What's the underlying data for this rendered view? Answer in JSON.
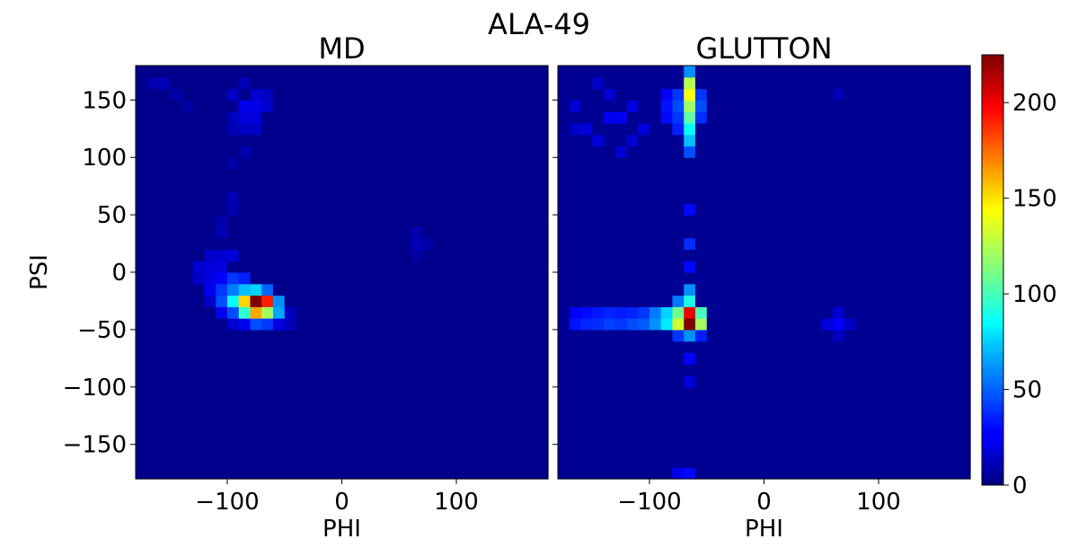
{
  "figure": {
    "title": "ALA-49"
  },
  "chart_data": [
    {
      "type": "heatmap",
      "title": "MD",
      "xlabel": "PHI",
      "ylabel": "PSI",
      "xlim": [
        -180,
        180
      ],
      "ylim": [
        -180,
        180
      ],
      "bins": 36,
      "xticks": [
        -100,
        0,
        100
      ],
      "yticks": [
        -150,
        -100,
        -50,
        0,
        50,
        100,
        150
      ],
      "tick_labels_x": [
        "−100",
        "0",
        "100"
      ],
      "tick_labels_y": [
        "−150",
        "−100",
        "−50",
        "0",
        "50",
        "100",
        "150"
      ],
      "background_count": 3,
      "peaks": [
        {
          "phi": -75,
          "psi": -25,
          "count": 225
        },
        {
          "phi": -65,
          "psi": -25,
          "count": 190
        },
        {
          "phi": -75,
          "psi": -35,
          "count": 160
        },
        {
          "phi": -85,
          "psi": -25,
          "count": 150
        },
        {
          "phi": -65,
          "psi": -35,
          "count": 120
        },
        {
          "phi": -85,
          "psi": -35,
          "count": 95
        },
        {
          "phi": -95,
          "psi": -25,
          "count": 85
        },
        {
          "phi": -75,
          "psi": -15,
          "count": 75
        },
        {
          "phi": -85,
          "psi": -15,
          "count": 70
        },
        {
          "phi": -95,
          "psi": -15,
          "count": 55
        },
        {
          "phi": -55,
          "psi": -25,
          "count": 60
        },
        {
          "phi": -55,
          "psi": -35,
          "count": 65
        },
        {
          "phi": -65,
          "psi": -15,
          "count": 50
        },
        {
          "phi": -105,
          "psi": -25,
          "count": 45
        },
        {
          "phi": -105,
          "psi": -15,
          "count": 40
        },
        {
          "phi": -95,
          "psi": -5,
          "count": 40
        },
        {
          "phi": -85,
          "psi": -5,
          "count": 35
        },
        {
          "phi": -75,
          "psi": -45,
          "count": 45
        },
        {
          "phi": -65,
          "psi": -45,
          "count": 40
        },
        {
          "phi": -95,
          "psi": -35,
          "count": 45
        },
        {
          "phi": -115,
          "psi": -15,
          "count": 25
        },
        {
          "phi": -105,
          "psi": -5,
          "count": 28
        },
        {
          "phi": -115,
          "psi": 5,
          "count": 20
        },
        {
          "phi": -105,
          "psi": 5,
          "count": 22
        },
        {
          "phi": -125,
          "psi": 5,
          "count": 18
        },
        {
          "phi": -125,
          "psi": -5,
          "count": 16
        },
        {
          "phi": -115,
          "psi": -5,
          "count": 22
        },
        {
          "phi": -95,
          "psi": 15,
          "count": 20
        },
        {
          "phi": -105,
          "psi": 15,
          "count": 18
        },
        {
          "phi": -115,
          "psi": 15,
          "count": 16
        },
        {
          "phi": -55,
          "psi": -45,
          "count": 22
        },
        {
          "phi": -85,
          "psi": -45,
          "count": 25
        },
        {
          "phi": -95,
          "psi": -45,
          "count": 18
        },
        {
          "phi": -105,
          "psi": -35,
          "count": 24
        },
        {
          "phi": -115,
          "psi": -25,
          "count": 16
        },
        {
          "phi": -45,
          "psi": -35,
          "count": 15
        },
        {
          "phi": -45,
          "psi": -45,
          "count": 12
        },
        {
          "phi": -75,
          "psi": 145,
          "count": 22
        },
        {
          "phi": -85,
          "psi": 145,
          "count": 24
        },
        {
          "phi": -75,
          "psi": 135,
          "count": 20
        },
        {
          "phi": -85,
          "psi": 135,
          "count": 22
        },
        {
          "phi": -65,
          "psi": 145,
          "count": 18
        },
        {
          "phi": -95,
          "psi": 155,
          "count": 16
        },
        {
          "phi": -75,
          "psi": 155,
          "count": 18
        },
        {
          "phi": -65,
          "psi": 155,
          "count": 14
        },
        {
          "phi": -85,
          "psi": 165,
          "count": 12
        },
        {
          "phi": -75,
          "psi": 125,
          "count": 16
        },
        {
          "phi": -85,
          "psi": 125,
          "count": 14
        },
        {
          "phi": -95,
          "psi": 135,
          "count": 14
        },
        {
          "phi": -95,
          "psi": 125,
          "count": 12
        },
        {
          "phi": -155,
          "psi": 165,
          "count": 12
        },
        {
          "phi": -165,
          "psi": 165,
          "count": 10
        },
        {
          "phi": -145,
          "psi": 155,
          "count": 9
        },
        {
          "phi": -135,
          "psi": 145,
          "count": 8
        },
        {
          "phi": -95,
          "psi": 65,
          "count": 12
        },
        {
          "phi": -95,
          "psi": 55,
          "count": 10
        },
        {
          "phi": -105,
          "psi": 45,
          "count": 10
        },
        {
          "phi": -105,
          "psi": 35,
          "count": 12
        },
        {
          "phi": -95,
          "psi": 95,
          "count": 9
        },
        {
          "phi": -85,
          "psi": 105,
          "count": 10
        },
        {
          "phi": 65,
          "psi": 25,
          "count": 12
        },
        {
          "phi": 65,
          "psi": 35,
          "count": 10
        },
        {
          "phi": 75,
          "psi": 25,
          "count": 9
        },
        {
          "phi": 65,
          "psi": 15,
          "count": 8
        }
      ]
    },
    {
      "type": "heatmap",
      "title": "GLUTTON",
      "xlabel": "PHI",
      "ylabel": "",
      "xlim": [
        -180,
        180
      ],
      "ylim": [
        -180,
        180
      ],
      "bins": 36,
      "xticks": [
        -100,
        0,
        100
      ],
      "yticks": [
        -150,
        -100,
        -50,
        0,
        50,
        100,
        150
      ],
      "tick_labels_x": [
        "−100",
        "0",
        "100"
      ],
      "tick_labels_y": [],
      "background_count": 4,
      "peaks": [
        {
          "phi": -65,
          "psi": -45,
          "count": 225
        },
        {
          "phi": -65,
          "psi": -35,
          "count": 200
        },
        {
          "phi": -75,
          "psi": -45,
          "count": 130
        },
        {
          "phi": -55,
          "psi": -45,
          "count": 120
        },
        {
          "phi": -75,
          "psi": -35,
          "count": 110
        },
        {
          "phi": -55,
          "psi": -35,
          "count": 100
        },
        {
          "phi": -85,
          "psi": -45,
          "count": 80
        },
        {
          "phi": -85,
          "psi": -35,
          "count": 75
        },
        {
          "phi": -65,
          "psi": -25,
          "count": 90
        },
        {
          "phi": -65,
          "psi": -15,
          "count": 60
        },
        {
          "phi": -75,
          "psi": -25,
          "count": 55
        },
        {
          "phi": -95,
          "psi": -45,
          "count": 60
        },
        {
          "phi": -95,
          "psi": -35,
          "count": 55
        },
        {
          "phi": -105,
          "psi": -45,
          "count": 48
        },
        {
          "phi": -115,
          "psi": -45,
          "count": 45
        },
        {
          "phi": -125,
          "psi": -45,
          "count": 40
        },
        {
          "phi": -135,
          "psi": -45,
          "count": 42
        },
        {
          "phi": -145,
          "psi": -45,
          "count": 38
        },
        {
          "phi": -155,
          "psi": -45,
          "count": 36
        },
        {
          "phi": -165,
          "psi": -45,
          "count": 32
        },
        {
          "phi": -105,
          "psi": -35,
          "count": 40
        },
        {
          "phi": -115,
          "psi": -35,
          "count": 36
        },
        {
          "phi": -125,
          "psi": -35,
          "count": 34
        },
        {
          "phi": -135,
          "psi": -35,
          "count": 36
        },
        {
          "phi": -145,
          "psi": -35,
          "count": 33
        },
        {
          "phi": -155,
          "psi": -35,
          "count": 30
        },
        {
          "phi": -165,
          "psi": -35,
          "count": 26
        },
        {
          "phi": -65,
          "psi": -55,
          "count": 60
        },
        {
          "phi": -75,
          "psi": -55,
          "count": 40
        },
        {
          "phi": -55,
          "psi": -55,
          "count": 35
        },
        {
          "phi": -65,
          "psi": 165,
          "count": 125
        },
        {
          "phi": -65,
          "psi": 155,
          "count": 140
        },
        {
          "phi": -65,
          "psi": 145,
          "count": 120
        },
        {
          "phi": -65,
          "psi": 135,
          "count": 105
        },
        {
          "phi": -65,
          "psi": 125,
          "count": 85
        },
        {
          "phi": -65,
          "psi": 115,
          "count": 70
        },
        {
          "phi": -65,
          "psi": 175,
          "count": 60
        },
        {
          "phi": -65,
          "psi": 105,
          "count": 45
        },
        {
          "phi": -55,
          "psi": 145,
          "count": 45
        },
        {
          "phi": -55,
          "psi": 155,
          "count": 40
        },
        {
          "phi": -55,
          "psi": 135,
          "count": 38
        },
        {
          "phi": -75,
          "psi": 145,
          "count": 45
        },
        {
          "phi": -75,
          "psi": 155,
          "count": 40
        },
        {
          "phi": -75,
          "psi": 135,
          "count": 40
        },
        {
          "phi": -75,
          "psi": 125,
          "count": 35
        },
        {
          "phi": -85,
          "psi": 145,
          "count": 32
        },
        {
          "phi": -85,
          "psi": 135,
          "count": 30
        },
        {
          "phi": -85,
          "psi": 155,
          "count": 28
        },
        {
          "phi": -65,
          "psi": 55,
          "count": 30
        },
        {
          "phi": -65,
          "psi": 25,
          "count": 38
        },
        {
          "phi": -65,
          "psi": 5,
          "count": 30
        },
        {
          "phi": -65,
          "psi": -75,
          "count": 28
        },
        {
          "phi": -65,
          "psi": -95,
          "count": 20
        },
        {
          "phi": -65,
          "psi": -175,
          "count": 30
        },
        {
          "phi": -75,
          "psi": -175,
          "count": 25
        },
        {
          "phi": -135,
          "psi": 135,
          "count": 24
        },
        {
          "phi": -125,
          "psi": 135,
          "count": 26
        },
        {
          "phi": -115,
          "psi": 145,
          "count": 22
        },
        {
          "phi": -155,
          "psi": 125,
          "count": 20
        },
        {
          "phi": -165,
          "psi": 145,
          "count": 18
        },
        {
          "phi": -145,
          "psi": 115,
          "count": 20
        },
        {
          "phi": -125,
          "psi": 105,
          "count": 18
        },
        {
          "phi": -135,
          "psi": 155,
          "count": 18
        },
        {
          "phi": -165,
          "psi": 125,
          "count": 16
        },
        {
          "phi": -145,
          "psi": 165,
          "count": 16
        },
        {
          "phi": -105,
          "psi": 125,
          "count": 20
        },
        {
          "phi": -115,
          "psi": 115,
          "count": 18
        },
        {
          "phi": 65,
          "psi": -45,
          "count": 28
        },
        {
          "phi": 55,
          "psi": -45,
          "count": 20
        },
        {
          "phi": 65,
          "psi": -35,
          "count": 18
        },
        {
          "phi": 75,
          "psi": -45,
          "count": 15
        },
        {
          "phi": 65,
          "psi": -55,
          "count": 14
        },
        {
          "phi": 65,
          "psi": 155,
          "count": 12
        }
      ]
    }
  ],
  "colorbar": {
    "min": 0,
    "max": 225,
    "colormap": "jet",
    "ticks": [
      0,
      50,
      100,
      150,
      200
    ],
    "tick_labels": [
      "0",
      "50",
      "100",
      "150",
      "200"
    ]
  }
}
